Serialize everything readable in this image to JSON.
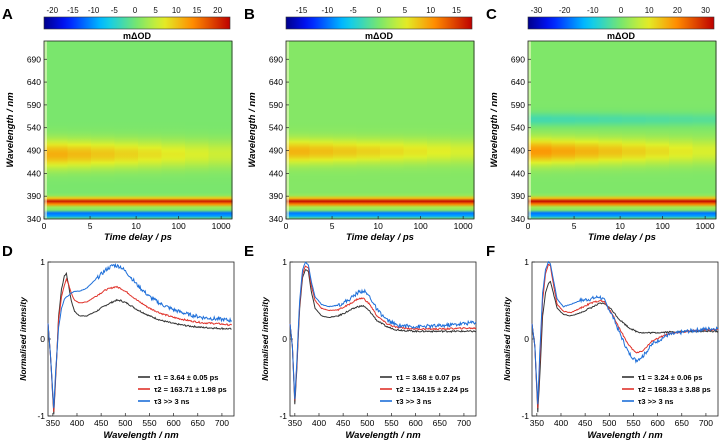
{
  "figure": {
    "panel_letters": [
      "A",
      "B",
      "C",
      "D",
      "E",
      "F"
    ],
    "colorbar_label": "mΔOD",
    "heatmap_xlabel": "Time delay / ps",
    "heatmap_ylabel": "Wavelength / nm",
    "spectra_xlabel": "Wavelength / nm",
    "spectra_ylabel": "Normalised intensity"
  },
  "chart_data": [
    {
      "panel": "A",
      "type": "heatmap",
      "colorbar": {
        "ticks": [
          "-20",
          "-15",
          "-10",
          "-5",
          "0",
          "5",
          "10",
          "15",
          "20"
        ],
        "range": [
          -22,
          23
        ]
      },
      "x_ticks": [
        "0",
        "5",
        "10",
        "100",
        "1000"
      ],
      "y_ticks": [
        "340",
        "390",
        "440",
        "490",
        "540",
        "590",
        "640",
        "690"
      ],
      "ylim": [
        340,
        730
      ],
      "features": [
        {
          "kind": "bleach",
          "center": 350,
          "width": 4,
          "value": -22
        },
        {
          "kind": "ESA",
          "center": 378,
          "width": 8,
          "value": 21
        },
        {
          "kind": "ESA",
          "center": 482,
          "width": 30,
          "value": 11,
          "decay_to": 5
        }
      ]
    },
    {
      "panel": "B",
      "type": "heatmap",
      "colorbar": {
        "ticks": [
          "-15",
          "-10",
          "-5",
          "0",
          "5",
          "10",
          "15"
        ],
        "range": [
          -18,
          18
        ]
      },
      "x_ticks": [
        "0",
        "5",
        "10",
        "100",
        "1000"
      ],
      "y_ticks": [
        "340",
        "390",
        "440",
        "490",
        "540",
        "590",
        "640",
        "690"
      ],
      "ylim": [
        340,
        730
      ],
      "features": [
        {
          "kind": "bleach",
          "center": 350,
          "width": 4,
          "value": -18
        },
        {
          "kind": "ESA",
          "center": 378,
          "width": 8,
          "value": 17
        },
        {
          "kind": "ESA",
          "center": 488,
          "width": 26,
          "value": 8,
          "decay_to": 4
        }
      ]
    },
    {
      "panel": "C",
      "type": "heatmap",
      "colorbar": {
        "ticks": [
          "-30",
          "-20",
          "-10",
          "0",
          "10",
          "20",
          "30"
        ],
        "range": [
          -33,
          33
        ]
      },
      "x_ticks": [
        "0",
        "5",
        "10",
        "100",
        "1000"
      ],
      "y_ticks": [
        "340",
        "390",
        "440",
        "490",
        "540",
        "590",
        "640",
        "690"
      ],
      "ylim": [
        340,
        730
      ],
      "features": [
        {
          "kind": "bleach",
          "center": 350,
          "width": 4,
          "value": -33
        },
        {
          "kind": "ESA",
          "center": 378,
          "width": 8,
          "value": 32
        },
        {
          "kind": "ESA",
          "center": 488,
          "width": 28,
          "value": 18,
          "decay_to": 8
        },
        {
          "kind": "SE",
          "center": 558,
          "width": 14,
          "value": -6,
          "decay_to": -4
        }
      ]
    },
    {
      "panel": "D",
      "type": "line",
      "x_ticks": [
        "350",
        "400",
        "450",
        "500",
        "550",
        "600",
        "650",
        "700"
      ],
      "y_ticks": [
        "-1",
        "0",
        "1"
      ],
      "xlim": [
        340,
        725
      ],
      "ylim": [
        -1,
        1
      ],
      "xlabel": "Wavelength / nm",
      "ylabel": "Normalised intensity",
      "legend": [
        "τ1 = 3.64 ± 0.05 ps",
        "τ2 = 163.71 ± 1.98 ps",
        "τ3 >> 3 ns"
      ],
      "series": [
        {
          "name": "τ1",
          "color": "#333333",
          "x": [
            340,
            345,
            352,
            356,
            362,
            368,
            374,
            378,
            382,
            388,
            395,
            405,
            420,
            440,
            460,
            480,
            490,
            505,
            525,
            550,
            575,
            600,
            630,
            660,
            690,
            720
          ],
          "y": [
            0.2,
            -0.2,
            -0.98,
            -0.5,
            0.3,
            0.65,
            0.82,
            0.85,
            0.72,
            0.5,
            0.36,
            0.3,
            0.3,
            0.36,
            0.44,
            0.5,
            0.5,
            0.46,
            0.38,
            0.3,
            0.24,
            0.2,
            0.17,
            0.15,
            0.14,
            0.13
          ]
        },
        {
          "name": "τ2",
          "color": "#e0332b",
          "x": [
            340,
            345,
            352,
            356,
            362,
            368,
            374,
            378,
            382,
            388,
            395,
            405,
            420,
            440,
            460,
            480,
            490,
            505,
            525,
            550,
            575,
            600,
            630,
            660,
            690,
            720
          ],
          "y": [
            0.2,
            -0.2,
            -0.95,
            -0.45,
            0.25,
            0.55,
            0.7,
            0.78,
            0.72,
            0.6,
            0.5,
            0.47,
            0.48,
            0.56,
            0.64,
            0.68,
            0.66,
            0.6,
            0.5,
            0.4,
            0.33,
            0.28,
            0.24,
            0.21,
            0.2,
            0.18
          ]
        },
        {
          "name": "τ3",
          "color": "#1e6fd9",
          "x": [
            340,
            345,
            352,
            356,
            362,
            368,
            374,
            378,
            382,
            388,
            395,
            405,
            420,
            440,
            460,
            475,
            490,
            505,
            525,
            550,
            575,
            600,
            630,
            660,
            690,
            720
          ],
          "y": [
            0.2,
            -0.2,
            -0.9,
            -0.4,
            0.15,
            0.4,
            0.52,
            0.55,
            0.56,
            0.6,
            0.62,
            0.62,
            0.66,
            0.78,
            0.9,
            0.96,
            0.94,
            0.85,
            0.7,
            0.55,
            0.45,
            0.38,
            0.32,
            0.28,
            0.26,
            0.24
          ]
        }
      ]
    },
    {
      "panel": "E",
      "type": "line",
      "x_ticks": [
        "350",
        "400",
        "450",
        "500",
        "550",
        "600",
        "650",
        "700"
      ],
      "y_ticks": [
        "-1",
        "0",
        "1"
      ],
      "xlim": [
        340,
        725
      ],
      "ylim": [
        -1,
        1
      ],
      "xlabel": "Wavelength / nm",
      "ylabel": "Normalised intensity",
      "legend": [
        "τ1 = 3.68 ± 0.07 ps",
        "τ2 = 134.15 ± 2.24 ps",
        "τ3 >> 3 ns"
      ],
      "series": [
        {
          "name": "τ1",
          "color": "#333333",
          "x": [
            340,
            345,
            350,
            354,
            360,
            366,
            372,
            378,
            384,
            392,
            405,
            420,
            440,
            460,
            480,
            492,
            505,
            520,
            540,
            560,
            600,
            650,
            700,
            725
          ],
          "y": [
            0.2,
            -0.1,
            -0.85,
            -0.4,
            0.4,
            0.8,
            0.9,
            0.88,
            0.62,
            0.4,
            0.3,
            0.28,
            0.3,
            0.36,
            0.42,
            0.43,
            0.36,
            0.24,
            0.16,
            0.12,
            0.1,
            0.1,
            0.1,
            0.1
          ]
        },
        {
          "name": "τ2",
          "color": "#e0332b",
          "x": [
            340,
            345,
            350,
            354,
            360,
            366,
            372,
            378,
            384,
            392,
            405,
            420,
            440,
            460,
            480,
            492,
            505,
            520,
            540,
            560,
            600,
            650,
            700,
            725
          ],
          "y": [
            0.2,
            -0.1,
            -0.8,
            -0.35,
            0.45,
            0.85,
            0.95,
            0.92,
            0.7,
            0.5,
            0.4,
            0.37,
            0.38,
            0.44,
            0.52,
            0.53,
            0.45,
            0.3,
            0.2,
            0.15,
            0.13,
            0.13,
            0.14,
            0.14
          ]
        },
        {
          "name": "τ3",
          "color": "#1e6fd9",
          "x": [
            340,
            345,
            350,
            354,
            360,
            366,
            372,
            378,
            384,
            392,
            405,
            420,
            440,
            460,
            480,
            492,
            505,
            520,
            540,
            560,
            600,
            650,
            700,
            725
          ],
          "y": [
            0.2,
            -0.1,
            -0.78,
            -0.3,
            0.5,
            0.9,
            1.0,
            0.96,
            0.75,
            0.55,
            0.45,
            0.42,
            0.44,
            0.5,
            0.6,
            0.63,
            0.55,
            0.38,
            0.25,
            0.18,
            0.16,
            0.17,
            0.2,
            0.22
          ]
        }
      ]
    },
    {
      "panel": "F",
      "type": "line",
      "x_ticks": [
        "350",
        "400",
        "450",
        "500",
        "550",
        "600",
        "650",
        "700"
      ],
      "y_ticks": [
        "-1",
        "0",
        "1"
      ],
      "xlim": [
        340,
        725
      ],
      "ylim": [
        -1,
        1
      ],
      "xlabel": "Wavelength / nm",
      "ylabel": "Normalised intensity",
      "legend": [
        "τ1 = 3.24 ± 0.06 ps",
        "τ2 = 168.33 ± 3.88 ps",
        "τ3 >> 3 ns"
      ],
      "series": [
        {
          "name": "τ1",
          "color": "#333333",
          "x": [
            340,
            346,
            352,
            356,
            362,
            368,
            374,
            378,
            384,
            392,
            405,
            420,
            440,
            460,
            480,
            490,
            505,
            520,
            540,
            555,
            570,
            590,
            620,
            660,
            700,
            725
          ],
          "y": [
            0.2,
            -0.1,
            -0.95,
            -0.5,
            0.3,
            0.6,
            0.72,
            0.75,
            0.6,
            0.4,
            0.32,
            0.3,
            0.34,
            0.4,
            0.46,
            0.46,
            0.38,
            0.26,
            0.15,
            0.1,
            0.08,
            0.08,
            0.09,
            0.1,
            0.1,
            0.1
          ]
        },
        {
          "name": "τ2",
          "color": "#e0332b",
          "x": [
            340,
            346,
            352,
            356,
            362,
            368,
            374,
            378,
            384,
            392,
            405,
            420,
            440,
            460,
            480,
            490,
            505,
            520,
            540,
            555,
            570,
            590,
            620,
            660,
            700,
            725
          ],
          "y": [
            0.2,
            -0.1,
            -0.9,
            -0.3,
            0.5,
            0.85,
            0.97,
            0.95,
            0.72,
            0.45,
            0.36,
            0.34,
            0.4,
            0.46,
            0.5,
            0.48,
            0.34,
            0.15,
            -0.08,
            -0.18,
            -0.15,
            -0.02,
            0.06,
            0.1,
            0.12,
            0.12
          ]
        },
        {
          "name": "τ3",
          "color": "#1e6fd9",
          "x": [
            340,
            346,
            352,
            356,
            362,
            368,
            374,
            378,
            384,
            392,
            405,
            420,
            440,
            460,
            480,
            490,
            505,
            520,
            540,
            555,
            570,
            590,
            620,
            660,
            700,
            725
          ],
          "y": [
            0.2,
            -0.1,
            -0.85,
            -0.2,
            0.6,
            0.9,
            1.0,
            0.98,
            0.78,
            0.52,
            0.42,
            0.45,
            0.5,
            0.52,
            0.55,
            0.5,
            0.32,
            0.1,
            -0.18,
            -0.28,
            -0.22,
            -0.06,
            0.05,
            0.1,
            0.13,
            0.14
          ]
        }
      ]
    }
  ]
}
